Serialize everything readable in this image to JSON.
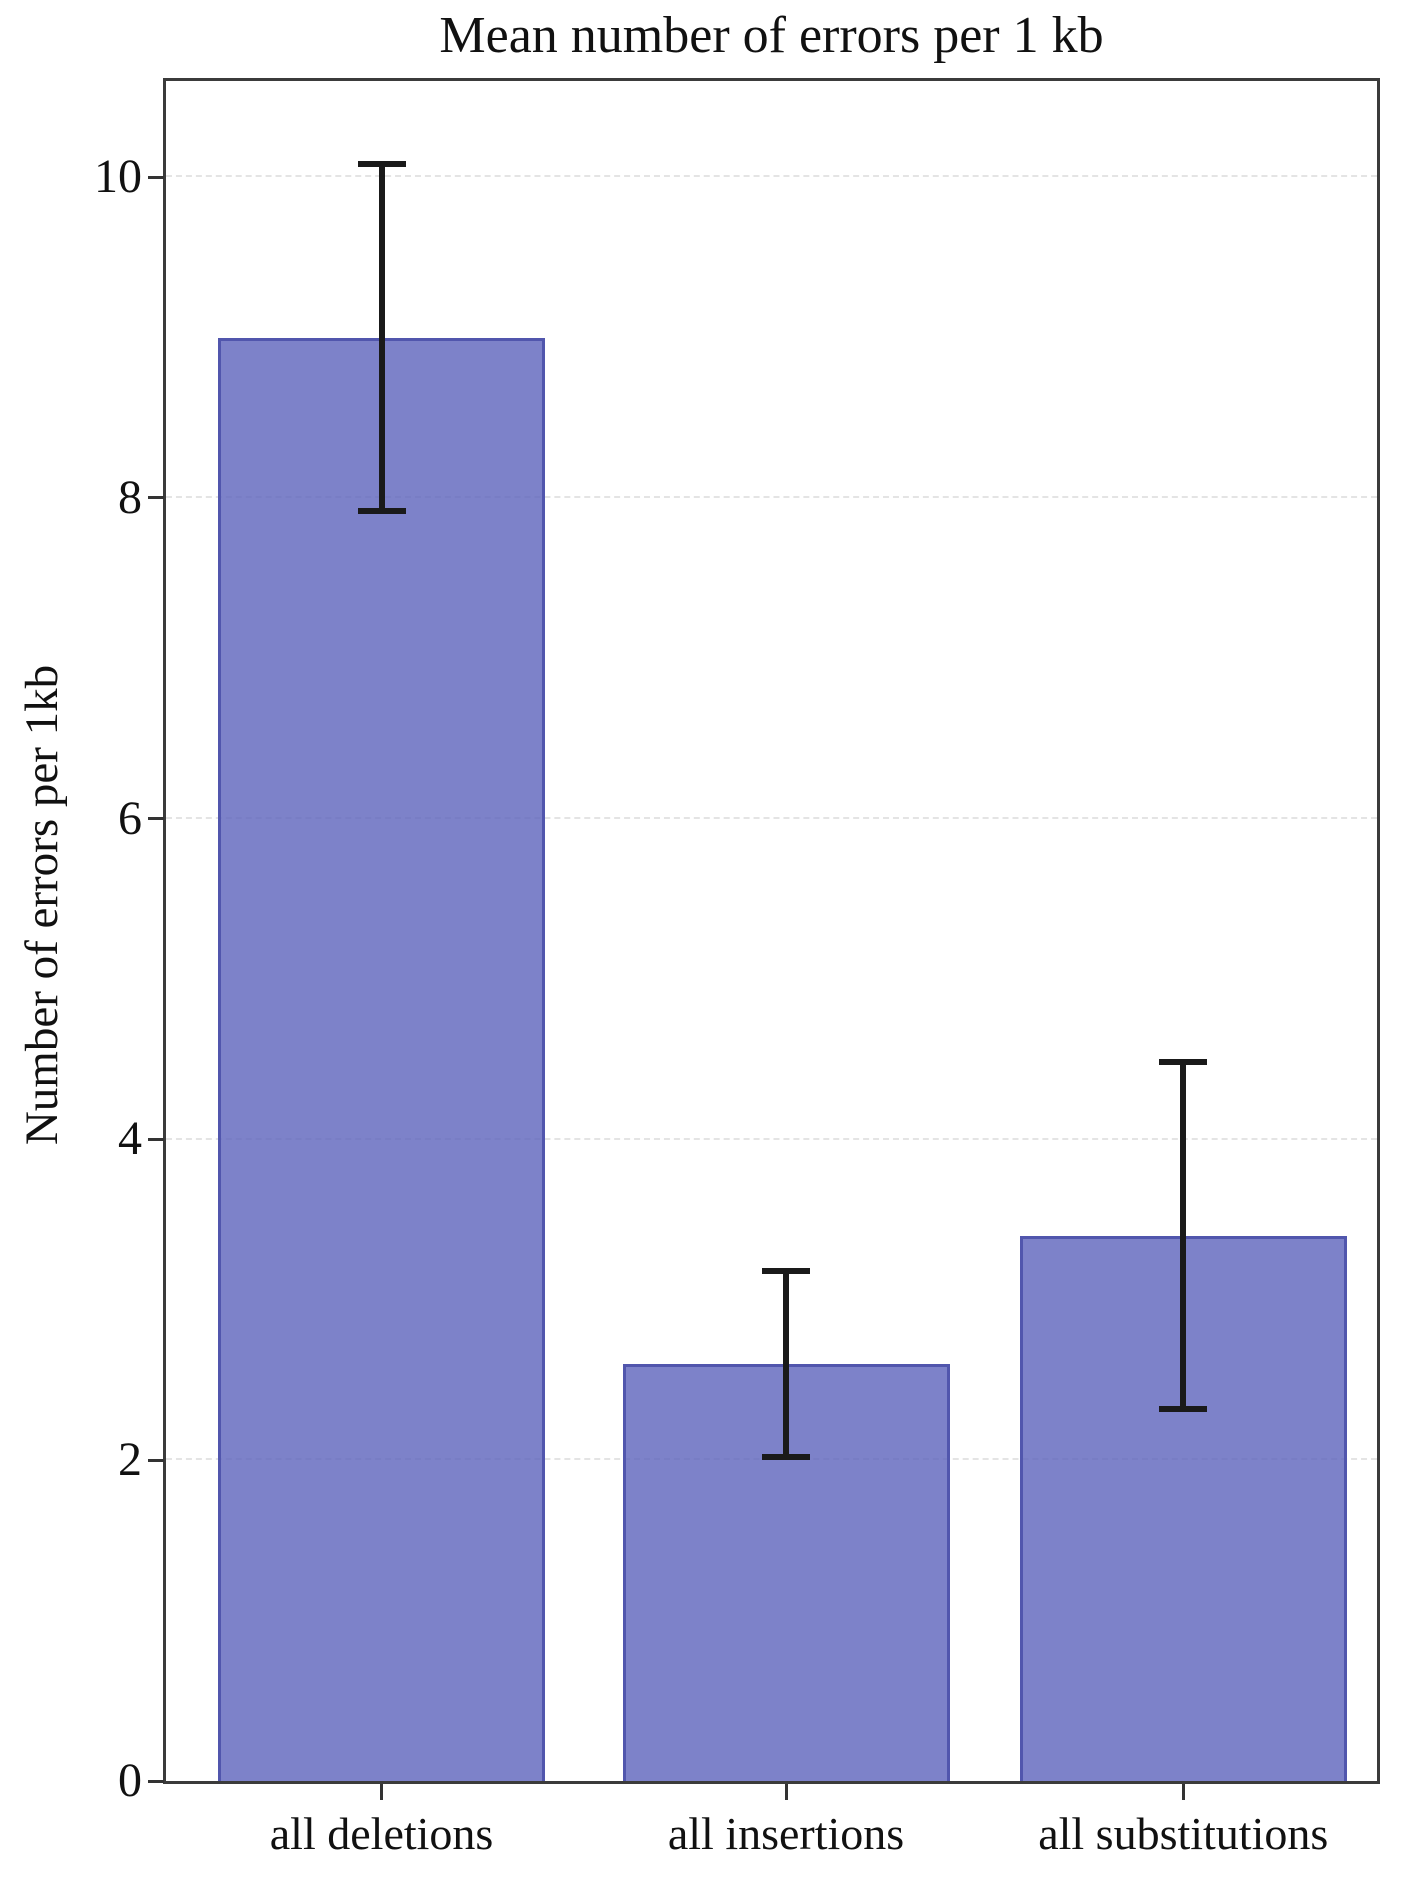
{
  "chart_data": {
    "type": "bar",
    "title": "Mean number of errors per 1 kb",
    "xlabel": "",
    "ylabel": "Number of errors per 1kb",
    "categories": [
      "all deletions",
      "all insertions",
      "all substitutions"
    ],
    "values": [
      9.0,
      2.6,
      3.4
    ],
    "error_low": [
      7.9,
      2.0,
      2.3
    ],
    "error_high": [
      10.1,
      3.2,
      4.5
    ],
    "yticks": [
      0,
      2,
      4,
      6,
      8,
      10
    ],
    "ylim": [
      0,
      10.6
    ],
    "grid": "horizontal dashed lines at major y ticks",
    "legend": "none",
    "colors": {
      "bar_fill": "rgba(93,99,188,0.8)",
      "bar_edge": "#5156ad",
      "errorbar": "#1a1a1a",
      "gridline": "#e4e4e4",
      "spine": "#3b3b3b",
      "text": "#111111"
    }
  }
}
